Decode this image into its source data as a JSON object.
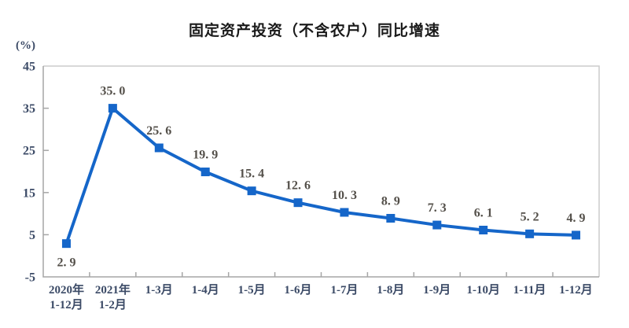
{
  "title": "固定资产投资（不含农户）同比增速",
  "chart_data": {
    "type": "line",
    "title": "固定资产投资（不含农户）同比增速",
    "unit_label": "(%)",
    "categories": [
      "2020年\n1-12月",
      "2021年\n1-2月",
      "1-3月",
      "1-4月",
      "1-5月",
      "1-6月",
      "1-7月",
      "1-8月",
      "1-9月",
      "1-10月",
      "1-11月",
      "1-12月"
    ],
    "values": [
      2.9,
      35.0,
      25.6,
      19.9,
      15.4,
      12.6,
      10.3,
      8.9,
      7.3,
      6.1,
      5.2,
      4.9
    ],
    "point_labels": [
      "2. 9",
      "35. 0",
      "25. 6",
      "19. 9",
      "15. 4",
      "12. 6",
      "10. 3",
      "8. 9",
      "7. 3",
      "6. 1",
      "5. 2",
      "4. 9"
    ],
    "ylim": [
      -5,
      45
    ],
    "yticks": [
      "45",
      "35",
      "25",
      "15",
      "5",
      "-5"
    ],
    "ytick_values": [
      45,
      35,
      25,
      15,
      5,
      -5
    ],
    "grid": false,
    "legend_position": "none",
    "line_color": "#1566C9",
    "marker": "square",
    "axis_dark_color": "#a6a6a6",
    "axis_light_color": "#cccccc",
    "tick_label_color": "#3b4a66",
    "data_label_color": "#54504a"
  }
}
